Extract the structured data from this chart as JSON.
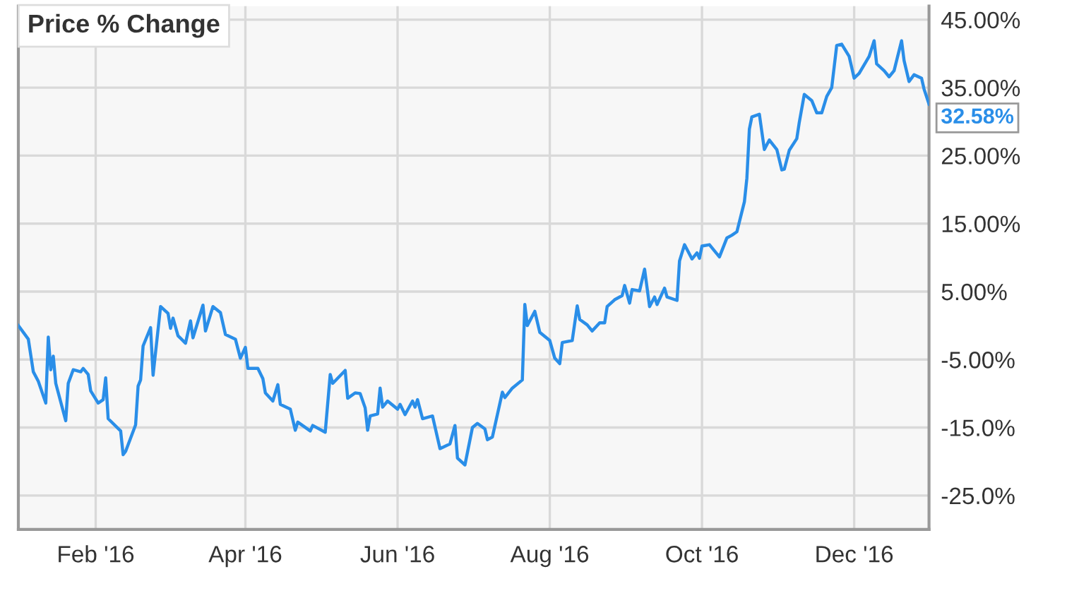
{
  "chart_data": {
    "type": "line",
    "title": "Price % Change",
    "series": [
      {
        "color": "#2a8ee8",
        "x": [
          "2016-01-01",
          "2016-01-05",
          "2016-01-07",
          "2016-01-09",
          "2016-01-12",
          "2016-01-13",
          "2016-01-14",
          "2016-01-15",
          "2016-01-16",
          "2016-01-20",
          "2016-01-21",
          "2016-01-23",
          "2016-01-26",
          "2016-01-27",
          "2016-01-29",
          "2016-01-30",
          "2016-02-02",
          "2016-02-04",
          "2016-02-05",
          "2016-02-06",
          "2016-02-11",
          "2016-02-12",
          "2016-02-13",
          "2016-02-17",
          "2016-02-18",
          "2016-02-19",
          "2016-02-20",
          "2016-02-23",
          "2016-02-24",
          "2016-02-27",
          "2016-03-01",
          "2016-03-02",
          "2016-03-03",
          "2016-03-05",
          "2016-03-08",
          "2016-03-10",
          "2016-03-11",
          "2016-03-15",
          "2016-03-16",
          "2016-03-19",
          "2016-03-22",
          "2016-03-24",
          "2016-03-28",
          "2016-03-30",
          "2016-04-01",
          "2016-04-02",
          "2016-04-06",
          "2016-04-08",
          "2016-04-09",
          "2016-04-12",
          "2016-04-14",
          "2016-04-15",
          "2016-04-19",
          "2016-04-21",
          "2016-04-22",
          "2016-04-27",
          "2016-04-28",
          "2016-05-03",
          "2016-05-05",
          "2016-05-06",
          "2016-05-11",
          "2016-05-12",
          "2016-05-15",
          "2016-05-17",
          "2016-05-19",
          "2016-05-20",
          "2016-05-21",
          "2016-05-24",
          "2016-05-25",
          "2016-05-26",
          "2016-05-28",
          "2016-06-01",
          "2016-06-02",
          "2016-06-04",
          "2016-06-07",
          "2016-06-08",
          "2016-06-09",
          "2016-06-11",
          "2016-06-15",
          "2016-06-18",
          "2016-06-22",
          "2016-06-24",
          "2016-06-25",
          "2016-06-28",
          "2016-07-01",
          "2016-07-03",
          "2016-07-06",
          "2016-07-07",
          "2016-07-09",
          "2016-07-13",
          "2016-07-14",
          "2016-07-17",
          "2016-07-21",
          "2016-07-22",
          "2016-07-23",
          "2016-07-26",
          "2016-07-28",
          "2016-08-01",
          "2016-08-03",
          "2016-08-05",
          "2016-08-06",
          "2016-08-10",
          "2016-08-12",
          "2016-08-13",
          "2016-08-16",
          "2016-08-18",
          "2016-08-21",
          "2016-08-23",
          "2016-08-24",
          "2016-08-27",
          "2016-08-30",
          "2016-08-31",
          "2016-09-02",
          "2016-09-03",
          "2016-09-06",
          "2016-09-08",
          "2016-09-10",
          "2016-09-12",
          "2016-09-13",
          "2016-09-16",
          "2016-09-17",
          "2016-09-21",
          "2016-09-22",
          "2016-09-24",
          "2016-09-27",
          "2016-09-29",
          "2016-09-30",
          "2016-10-01",
          "2016-10-04",
          "2016-10-08",
          "2016-10-11",
          "2016-10-13",
          "2016-10-15",
          "2016-10-18",
          "2016-10-19",
          "2016-10-20",
          "2016-10-21",
          "2016-10-24",
          "2016-10-26",
          "2016-10-28",
          "2016-10-31",
          "2016-11-02",
          "2016-11-03",
          "2016-11-05",
          "2016-11-08",
          "2016-11-09",
          "2016-11-11",
          "2016-11-14",
          "2016-11-16",
          "2016-11-18",
          "2016-11-20",
          "2016-11-22",
          "2016-11-24",
          "2016-11-26",
          "2016-11-29",
          "2016-12-01",
          "2016-12-03",
          "2016-12-07",
          "2016-12-09",
          "2016-12-10",
          "2016-12-13",
          "2016-12-15",
          "2016-12-17",
          "2016-12-20",
          "2016-12-21",
          "2016-12-23",
          "2016-12-25",
          "2016-12-28",
          "2016-12-29",
          "2016-12-31"
        ],
        "values": [
          0,
          -2.0,
          -6.8,
          -8.2,
          -11.4,
          -1.7,
          -6.5,
          -4.5,
          -8.5,
          -14.0,
          -8.5,
          -6.5,
          -6.8,
          -6.3,
          -7.2,
          -9.6,
          -11.4,
          -10.9,
          -7.7,
          -13.7,
          -15.5,
          -19.0,
          -18.5,
          -14.6,
          -8.9,
          -8.0,
          -3.0,
          -0.3,
          -7.3,
          2.8,
          1.8,
          -0.4,
          1.1,
          -1.5,
          -2.6,
          0.7,
          -1.8,
          3.0,
          -0.8,
          2.8,
          1.9,
          -1.3,
          -2.0,
          -4.8,
          -3.2,
          -6.3,
          -6.3,
          -7.8,
          -9.9,
          -11.1,
          -8.7,
          -11.6,
          -12.3,
          -15.4,
          -14.2,
          -15.5,
          -14.7,
          -15.7,
          -7.2,
          -8.5,
          -6.6,
          -10.7,
          -9.9,
          -10.0,
          -12.1,
          -15.4,
          -13.3,
          -13.0,
          -9.2,
          -12.0,
          -11.1,
          -12.3,
          -11.6,
          -13.1,
          -11.1,
          -12.0,
          -10.9,
          -13.7,
          -13.3,
          -18.1,
          -17.4,
          -14.7,
          -19.5,
          -20.5,
          -15.0,
          -14.4,
          -15.2,
          -16.8,
          -16.4,
          -9.8,
          -10.6,
          -9.2,
          -8.0,
          3.1,
          0.0,
          2.1,
          -1.0,
          -2.2,
          -4.8,
          -5.6,
          -2.5,
          -2.2,
          2.9,
          0.9,
          0.1,
          -0.8,
          0.4,
          0.4,
          2.8,
          3.8,
          4.4,
          5.9,
          3.3,
          5.3,
          5.1,
          8.3,
          2.8,
          4.2,
          3.1,
          5.5,
          4.2,
          3.7,
          9.5,
          11.9,
          9.8,
          10.7,
          9.9,
          11.7,
          11.9,
          10.1,
          12.9,
          13.3,
          13.8,
          18.2,
          21.7,
          28.9,
          30.7,
          31.1,
          25.9,
          27.3,
          25.9,
          22.9,
          23.0,
          25.8,
          27.5,
          29.9,
          34.0,
          33.1,
          31.3,
          31.3,
          33.7,
          35.0,
          41.2,
          41.4,
          39.6,
          36.4,
          37.1,
          39.6,
          41.9,
          38.5,
          37.5,
          36.6,
          37.5,
          41.9,
          39.0,
          35.9,
          36.9,
          36.4,
          34.8,
          32.58
        ]
      }
    ],
    "xlim": [
      "2016-01-01",
      "2016-12-31"
    ],
    "xticks": [
      {
        "value": "2016-02-01",
        "label": "Feb '16"
      },
      {
        "value": "2016-04-01",
        "label": "Apr '16"
      },
      {
        "value": "2016-06-01",
        "label": "Jun '16"
      },
      {
        "value": "2016-08-01",
        "label": "Aug '16"
      },
      {
        "value": "2016-10-01",
        "label": "Oct '16"
      },
      {
        "value": "2016-12-01",
        "label": "Dec '16"
      }
    ],
    "ylim": [
      -30,
      47
    ],
    "yticks": [
      {
        "value": 45,
        "label": "45.00%"
      },
      {
        "value": 35,
        "label": "35.00%"
      },
      {
        "value": 25,
        "label": "25.00%"
      },
      {
        "value": 15,
        "label": "15.00%"
      },
      {
        "value": 5,
        "label": "5.00%"
      },
      {
        "value": -5,
        "label": "-5.00%"
      },
      {
        "value": -15,
        "label": "-15.0%"
      },
      {
        "value": -25,
        "label": "-25.0%"
      }
    ],
    "annotations": [
      {
        "text": "32.58%",
        "x": "2016-12-31",
        "y": 32.58
      }
    ],
    "grid": true,
    "legend": false,
    "marker": "none",
    "line_style": "solid"
  }
}
